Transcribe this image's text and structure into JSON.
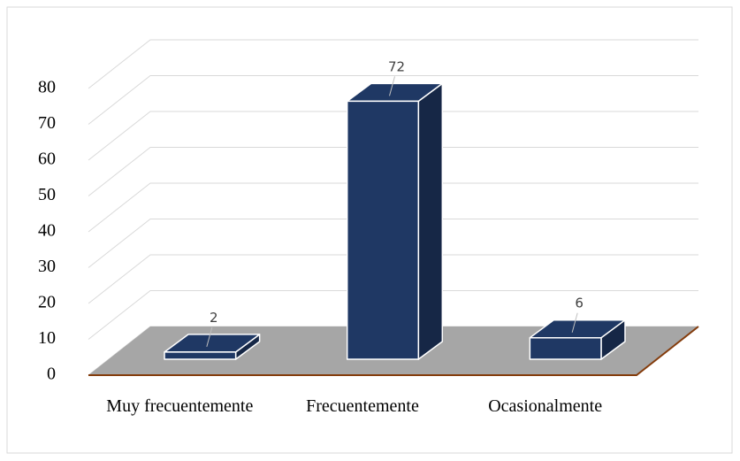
{
  "chart_data": {
    "type": "bar3d",
    "categories": [
      "Muy frecuentemente",
      "Frecuentemente",
      "Ocasionalmente"
    ],
    "values": [
      2,
      72,
      6
    ],
    "color": "#1f3864",
    "ylim": [
      0,
      80
    ],
    "yticks": [
      0,
      10,
      20,
      30,
      40,
      50,
      60,
      70,
      80
    ],
    "grid": true
  }
}
